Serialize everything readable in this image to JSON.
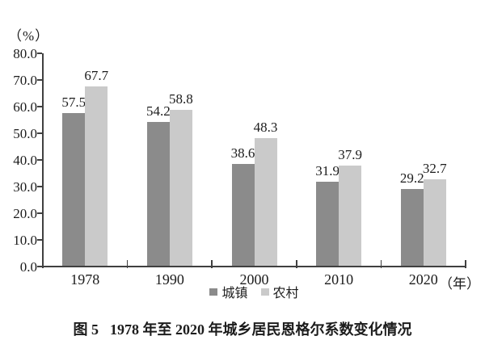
{
  "chart_data": {
    "type": "bar",
    "title": "图 5 1978 年至 2020 年城乡居民恩格尔系数变化情况",
    "categories": [
      "1978",
      "1990",
      "2000",
      "2010",
      "2020"
    ],
    "series": [
      {
        "name": "城镇",
        "key": "urban",
        "color": "#8b8b8b",
        "values": [
          57.5,
          54.2,
          38.6,
          31.9,
          29.2
        ]
      },
      {
        "name": "农村",
        "key": "rural",
        "color": "#cacaca",
        "values": [
          67.7,
          58.8,
          48.3,
          37.9,
          32.7
        ]
      }
    ],
    "ylabel": "（%）",
    "x_unit": "（年）",
    "ylim": [
      0,
      80
    ],
    "yticks": [
      0,
      10,
      20,
      30,
      40,
      50,
      60,
      70,
      80
    ],
    "ytick_decimals": 1,
    "grid": false,
    "legend_position": "bottom",
    "value_labels": true,
    "axis_color": "#404040",
    "text_color": "#1c1c1c"
  },
  "caption": {
    "figure_label": "图 5",
    "title": "1978 年至 2020 年城乡居民恩格尔系数变化情况"
  }
}
